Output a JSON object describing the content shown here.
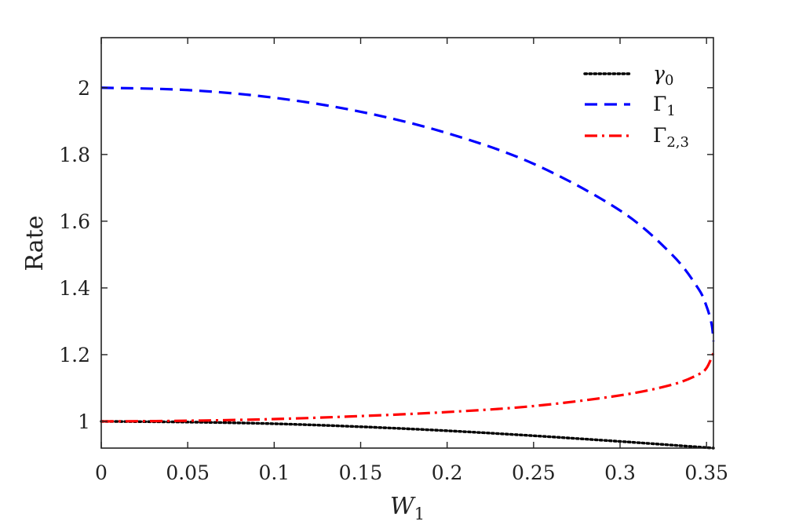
{
  "chart_data": {
    "type": "line",
    "title": "",
    "xlabel": "W",
    "xlabel_sub": "1",
    "ylabel": "Rate",
    "xlim": [
      0,
      0.354
    ],
    "ylim": [
      0.92,
      2.15
    ],
    "xticks": [
      0,
      0.05,
      0.1,
      0.15,
      0.2,
      0.25,
      0.3,
      0.35
    ],
    "xtick_labels": [
      "0",
      "0.05",
      "0.1",
      "0.15",
      "0.2",
      "0.25",
      "0.3",
      "0.35"
    ],
    "yticks": [
      1,
      1.2,
      1.4,
      1.6,
      1.8,
      2
    ],
    "ytick_labels": [
      "1",
      "1.2",
      "1.4",
      "1.6",
      "1.8",
      "2"
    ],
    "grid": false,
    "legend_position": "top-right",
    "series": [
      {
        "name": "γ",
        "name_sub": "0",
        "color": "#000000",
        "style": "dotted",
        "x": [
          0,
          0.05,
          0.1,
          0.15,
          0.2,
          0.25,
          0.3,
          0.33,
          0.354
        ],
        "y": [
          1.0,
          0.998,
          0.993,
          0.984,
          0.972,
          0.957,
          0.94,
          0.929,
          0.92
        ]
      },
      {
        "name": "Γ",
        "name_sub": "1",
        "color": "#0000ff",
        "style": "dashed",
        "x": [
          0,
          0.05,
          0.1,
          0.15,
          0.2,
          0.25,
          0.3,
          0.33,
          0.345,
          0.35,
          0.353,
          0.354
        ],
        "y": [
          2.0,
          1.993,
          1.97,
          1.928,
          1.864,
          1.772,
          1.632,
          1.5,
          1.4,
          1.345,
          1.29,
          1.24
        ]
      },
      {
        "name": "Γ",
        "name_sub": "2,3",
        "color": "#ff0000",
        "style": "dashdot",
        "x": [
          0,
          0.05,
          0.1,
          0.15,
          0.2,
          0.25,
          0.3,
          0.33,
          0.345,
          0.35,
          0.354
        ],
        "y": [
          1.0,
          1.002,
          1.007,
          1.016,
          1.028,
          1.046,
          1.078,
          1.11,
          1.14,
          1.16,
          1.205
        ]
      }
    ]
  }
}
